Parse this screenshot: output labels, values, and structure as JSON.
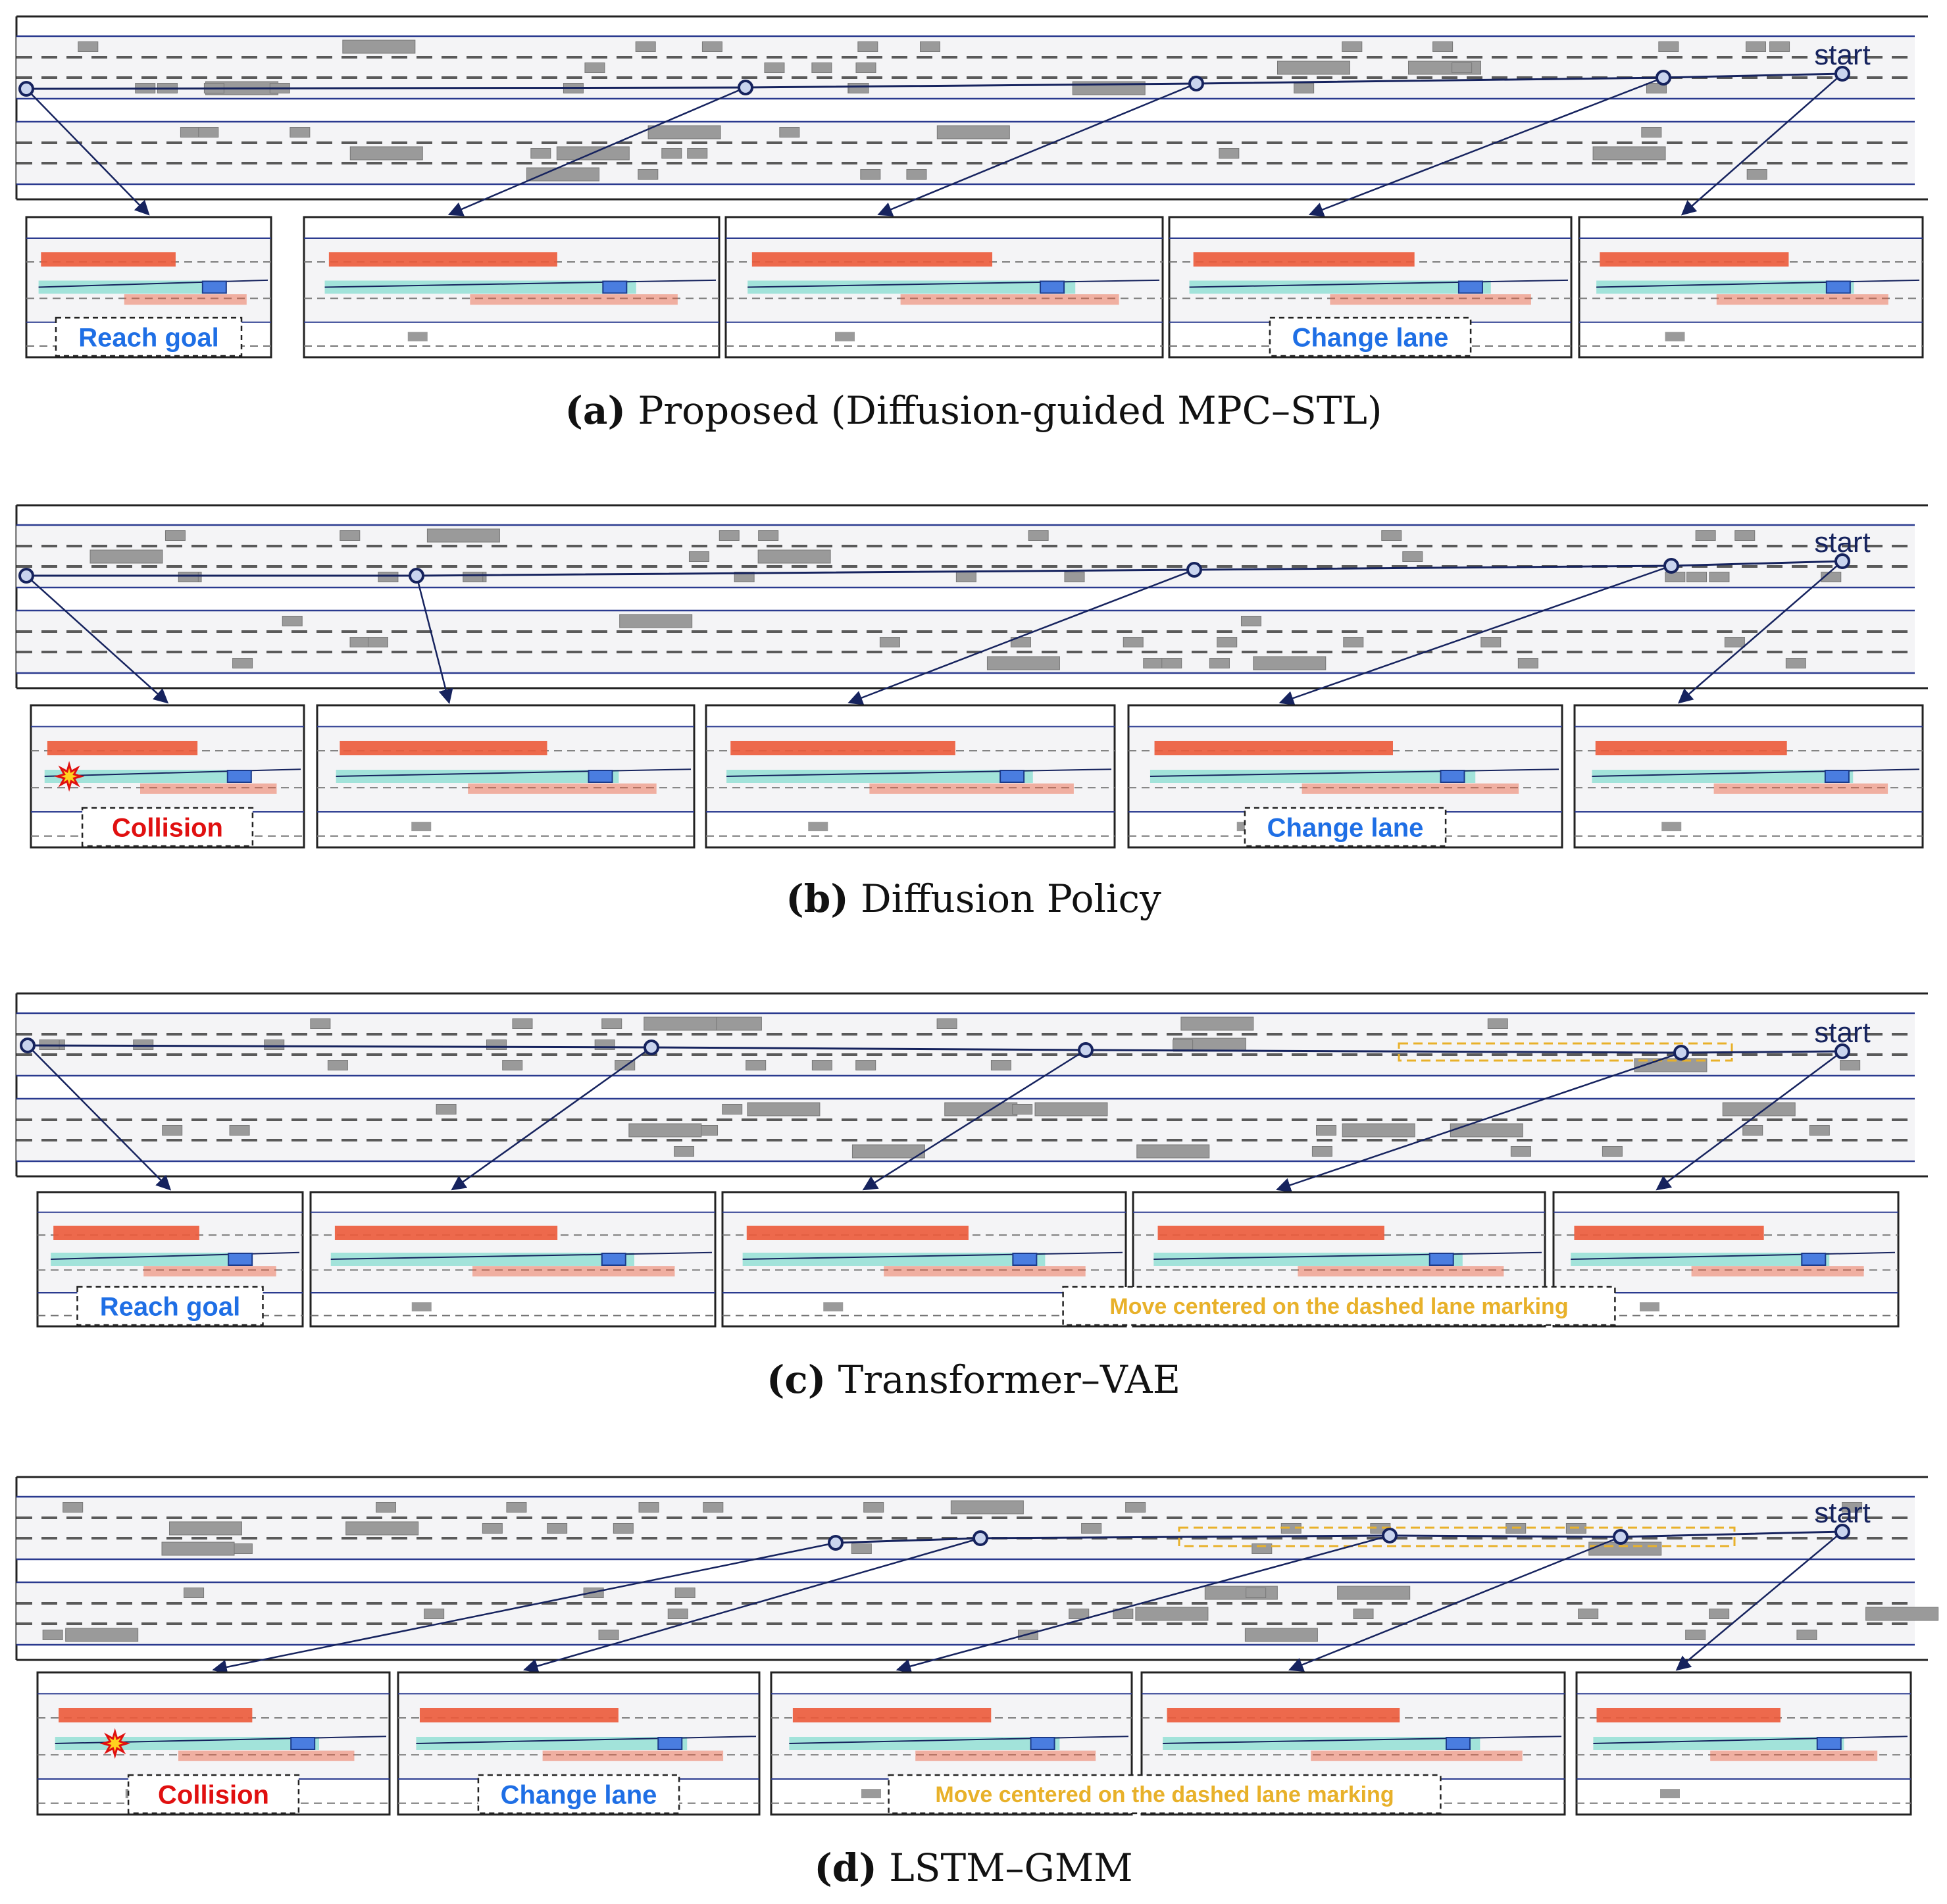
{
  "colors": {
    "road_line": "#2a3a8f",
    "lane_dash": "#5a5a5a",
    "road_fill": "#f4f4f6",
    "trajectory": "#16235e",
    "ego": "#4a7de0",
    "traffic_gray": "#9a9a9a",
    "traffic_red": "#ec5a3a",
    "plan_band": "#5fd6c2",
    "highlight": "#e8b12a",
    "label_blue": "#1f6fe5",
    "label_red": "#e01010"
  },
  "start_label": "start",
  "panels": [
    {
      "letter": "(a)",
      "caption": "Proposed (Diffusion-guided MPC–STL)",
      "snapshot_labels": [
        {
          "text": "Reach goal",
          "color": "blue"
        },
        {
          "text": "",
          "color": "blue"
        },
        {
          "text": "",
          "color": "blue"
        },
        {
          "text": "Change lane",
          "color": "blue"
        },
        {
          "text": "",
          "color": "blue"
        }
      ]
    },
    {
      "letter": "(b)",
      "caption": "Diffusion Policy",
      "snapshot_labels": [
        {
          "text": "Collision",
          "color": "red"
        },
        {
          "text": "",
          "color": "blue"
        },
        {
          "text": "",
          "color": "blue"
        },
        {
          "text": "Change lane",
          "color": "blue"
        },
        {
          "text": "",
          "color": "blue"
        }
      ]
    },
    {
      "letter": "(c)",
      "caption": "Transformer–VAE",
      "snapshot_labels": [
        {
          "text": "Reach goal",
          "color": "blue"
        },
        {
          "text": "",
          "color": "blue"
        },
        {
          "text": "",
          "color": "blue"
        },
        {
          "text": "Move centered on the dashed lane marking",
          "color": "yellow"
        },
        {
          "text": "",
          "color": "blue"
        }
      ]
    },
    {
      "letter": "(d)",
      "caption": "LSTM–GMM",
      "snapshot_labels": [
        {
          "text": "Collision",
          "color": "red"
        },
        {
          "text": "Change lane",
          "color": "blue"
        },
        {
          "text": "Move centered on the dashed lane marking",
          "color": "yellow"
        },
        {
          "text": "",
          "color": "blue"
        },
        {
          "text": "",
          "color": "blue"
        }
      ]
    }
  ]
}
